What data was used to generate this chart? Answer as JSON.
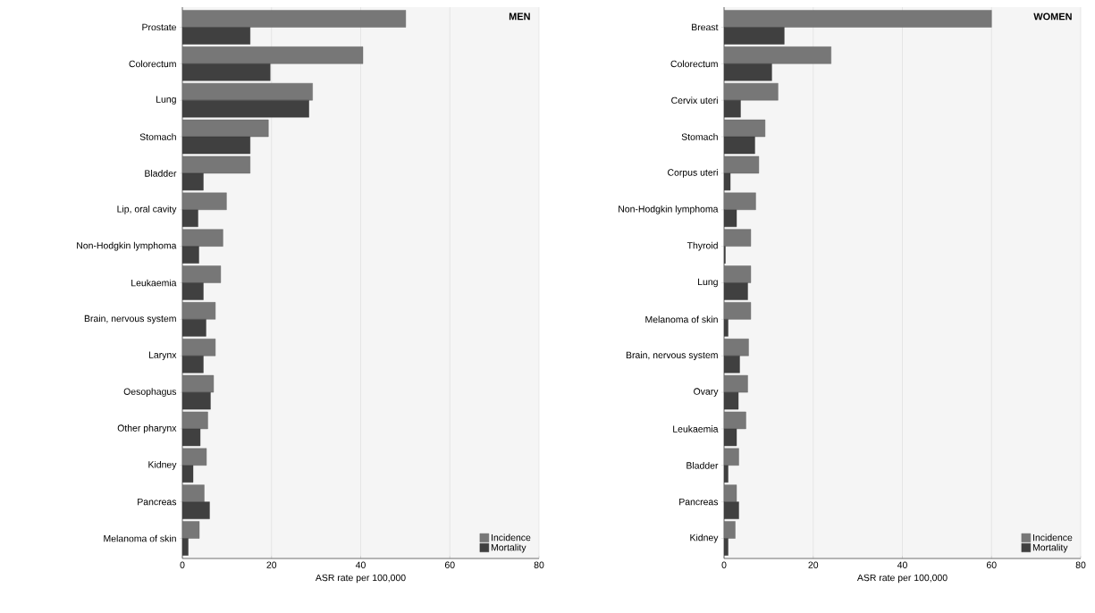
{
  "chart_data": [
    {
      "type": "bar",
      "orientation": "horizontal",
      "title": "MEN",
      "xlabel": "ASR  rate per 100,000",
      "categories": [
        "Prostate",
        "Colorectum",
        "Lung",
        "Stomach",
        "Bladder",
        "Lip, oral cavity",
        "Non-Hodgkin lymphoma",
        "Leukaemia",
        "Brain, nervous system",
        "Larynx",
        "Oesophagus",
        "Other pharynx",
        "Kidney",
        "Pancreas",
        "Melanoma of skin"
      ],
      "series": [
        {
          "name": "Incidence",
          "color": "#777777",
          "values": [
            50.1,
            40.5,
            29.2,
            19.3,
            15.2,
            9.9,
            9.1,
            8.6,
            7.4,
            7.4,
            7.0,
            5.7,
            5.4,
            4.9,
            3.8
          ]
        },
        {
          "name": "Mortality",
          "color": "#404040",
          "values": [
            15.2,
            19.7,
            28.4,
            15.2,
            4.7,
            3.5,
            3.7,
            4.7,
            5.3,
            4.7,
            6.3,
            4.0,
            2.4,
            6.1,
            1.3
          ]
        }
      ],
      "xlim": [
        0,
        80
      ],
      "xticks": [
        0,
        20,
        40,
        60,
        80
      ],
      "grid": "x",
      "legend": "bottom right"
    },
    {
      "type": "bar",
      "orientation": "horizontal",
      "title": "WOMEN",
      "xlabel": "ASR  rate per 100,000",
      "categories": [
        "Breast",
        "Colorectum",
        "Cervix uteri",
        "Stomach",
        "Corpus uteri",
        "Non-Hodgkin lymphoma",
        "Thyroid",
        "Lung",
        "Melanoma of skin",
        "Brain, nervous system",
        "Ovary",
        "Leukaemia",
        "Bladder",
        "Pancreas",
        "Kidney"
      ],
      "series": [
        {
          "name": "Incidence",
          "color": "#777777",
          "values": [
            60.0,
            24.0,
            12.1,
            9.2,
            7.8,
            7.1,
            6.0,
            6.0,
            6.0,
            5.5,
            5.3,
            4.9,
            3.3,
            2.8,
            2.5
          ]
        },
        {
          "name": "Mortality",
          "color": "#404040",
          "values": [
            13.5,
            10.7,
            3.7,
            6.9,
            1.4,
            2.8,
            0.3,
            5.3,
            0.9,
            3.5,
            3.2,
            2.8,
            0.9,
            3.3,
            0.9
          ]
        }
      ],
      "xlim": [
        0,
        80
      ],
      "xticks": [
        0,
        20,
        40,
        60,
        80
      ],
      "grid": "x",
      "legend": "bottom right"
    }
  ]
}
